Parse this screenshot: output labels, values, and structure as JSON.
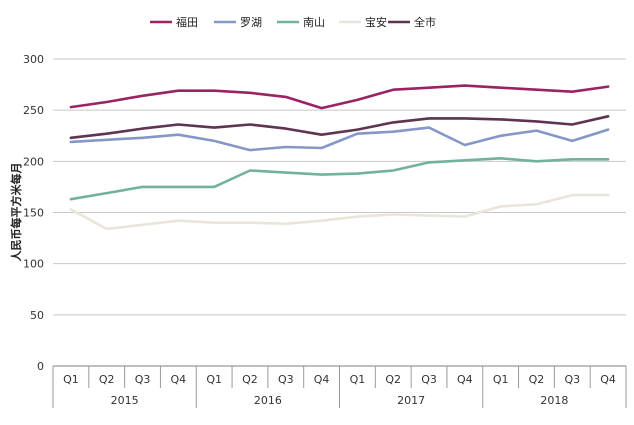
{
  "chart_data": {
    "type": "line",
    "ylabel": "人民币每平方米每月",
    "ylim": [
      0,
      300
    ],
    "yticks": [
      "0",
      "50",
      "100",
      "150",
      "200",
      "250",
      "300"
    ],
    "quarters": [
      "Q1",
      "Q2",
      "Q3",
      "Q4",
      "Q1",
      "Q2",
      "Q3",
      "Q4",
      "Q1",
      "Q2",
      "Q3",
      "Q4",
      "Q1",
      "Q2",
      "Q3",
      "Q4"
    ],
    "years": [
      "2015",
      "2016",
      "2017",
      "2018"
    ],
    "legend_position": "top",
    "grid": "horizontal",
    "series": [
      {
        "name": "福田",
        "color": "#9B2362",
        "values": [
          253,
          258,
          264,
          269,
          269,
          267,
          263,
          252,
          260,
          270,
          272,
          274,
          272,
          270,
          268,
          273
        ]
      },
      {
        "name": "罗湖",
        "color": "#8497C6",
        "values": [
          219,
          221,
          223,
          226,
          220,
          211,
          214,
          213,
          227,
          229,
          233,
          216,
          225,
          230,
          220,
          231
        ]
      },
      {
        "name": "南山",
        "color": "#72B19C",
        "values": [
          163,
          169,
          175,
          175,
          175,
          191,
          189,
          187,
          188,
          191,
          199,
          201,
          203,
          200,
          202,
          202
        ]
      },
      {
        "name": "宝安",
        "color": "#E9E5DA",
        "values": [
          153,
          134,
          138,
          142,
          140,
          140,
          139,
          142,
          146,
          148,
          147,
          146,
          156,
          158,
          167,
          167
        ]
      },
      {
        "name": "全市",
        "color": "#5E3450",
        "values": [
          223,
          227,
          232,
          236,
          233,
          236,
          232,
          226,
          231,
          238,
          242,
          242,
          241,
          239,
          236,
          244
        ]
      }
    ]
  }
}
